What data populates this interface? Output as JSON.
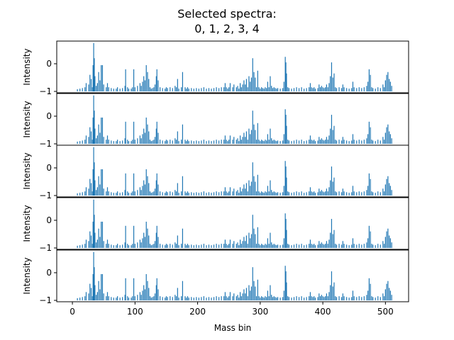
{
  "figure": {
    "title_line1": "Selected spectra:",
    "title_line2": "0, 1, 2, 3, 4"
  },
  "chart_data": {
    "type": "bar",
    "layout": "5 vertically stacked panels with shared x axis",
    "color": "#1f77b4",
    "xlabel": "Mass bin",
    "ylabel": "Intensity",
    "xlim": [
      -25,
      537
    ],
    "ylim": [
      -1.05,
      0.82
    ],
    "x_ticks": [
      0,
      100,
      200,
      300,
      400,
      500
    ],
    "y_ticks": [
      -1,
      0
    ],
    "baseline": -1,
    "panel_names": [
      "0",
      "1",
      "2",
      "3",
      "4"
    ],
    "peaks": [
      {
        "x": 8,
        "y": -0.92
      },
      {
        "x": 12,
        "y": -0.9
      },
      {
        "x": 16,
        "y": -0.88
      },
      {
        "x": 20,
        "y": -0.85
      },
      {
        "x": 22,
        "y": -0.7
      },
      {
        "x": 26,
        "y": -0.75
      },
      {
        "x": 28,
        "y": -0.4
      },
      {
        "x": 30,
        "y": -0.55
      },
      {
        "x": 32,
        "y": -0.85
      },
      {
        "x": 33,
        "y": -0.05
      },
      {
        "x": 34,
        "y": 0.75
      },
      {
        "x": 35,
        "y": 0.2
      },
      {
        "x": 36,
        "y": -0.45
      },
      {
        "x": 38,
        "y": -0.8
      },
      {
        "x": 40,
        "y": -0.7
      },
      {
        "x": 42,
        "y": -0.3
      },
      {
        "x": 44,
        "y": -0.6
      },
      {
        "x": 46,
        "y": -0.05
      },
      {
        "x": 48,
        "y": -0.05
      },
      {
        "x": 50,
        "y": -0.75
      },
      {
        "x": 54,
        "y": -0.85
      },
      {
        "x": 56,
        "y": -0.7
      },
      {
        "x": 58,
        "y": -0.85
      },
      {
        "x": 62,
        "y": -0.88
      },
      {
        "x": 66,
        "y": -0.9
      },
      {
        "x": 70,
        "y": -0.9
      },
      {
        "x": 72,
        "y": -0.85
      },
      {
        "x": 76,
        "y": -0.9
      },
      {
        "x": 80,
        "y": -0.88
      },
      {
        "x": 84,
        "y": -0.8
      },
      {
        "x": 85,
        "y": -0.2
      },
      {
        "x": 88,
        "y": -0.85
      },
      {
        "x": 90,
        "y": -0.9
      },
      {
        "x": 94,
        "y": -0.9
      },
      {
        "x": 96,
        "y": -0.85
      },
      {
        "x": 98,
        "y": -0.2
      },
      {
        "x": 100,
        "y": -0.85
      },
      {
        "x": 104,
        "y": -0.8
      },
      {
        "x": 108,
        "y": -0.7
      },
      {
        "x": 110,
        "y": -0.8
      },
      {
        "x": 112,
        "y": -0.65
      },
      {
        "x": 114,
        "y": -0.45
      },
      {
        "x": 116,
        "y": -0.6
      },
      {
        "x": 118,
        "y": -0.05
      },
      {
        "x": 120,
        "y": -0.3
      },
      {
        "x": 122,
        "y": -0.55
      },
      {
        "x": 124,
        "y": -0.85
      },
      {
        "x": 126,
        "y": -0.9
      },
      {
        "x": 128,
        "y": -0.88
      },
      {
        "x": 130,
        "y": -0.85
      },
      {
        "x": 132,
        "y": -0.75
      },
      {
        "x": 134,
        "y": -0.45
      },
      {
        "x": 135,
        "y": -0.2
      },
      {
        "x": 137,
        "y": -0.6
      },
      {
        "x": 140,
        "y": -0.85
      },
      {
        "x": 144,
        "y": -0.88
      },
      {
        "x": 148,
        "y": -0.9
      },
      {
        "x": 150,
        "y": -0.85
      },
      {
        "x": 152,
        "y": -0.88
      },
      {
        "x": 156,
        "y": -0.85
      },
      {
        "x": 160,
        "y": -0.88
      },
      {
        "x": 164,
        "y": -0.8
      },
      {
        "x": 166,
        "y": -0.85
      },
      {
        "x": 168,
        "y": -0.55
      },
      {
        "x": 170,
        "y": -0.9
      },
      {
        "x": 174,
        "y": -0.85
      },
      {
        "x": 176,
        "y": -0.3
      },
      {
        "x": 180,
        "y": -0.85
      },
      {
        "x": 182,
        "y": -0.9
      },
      {
        "x": 184,
        "y": -0.85
      },
      {
        "x": 186,
        "y": -0.9
      },
      {
        "x": 190,
        "y": -0.88
      },
      {
        "x": 194,
        "y": -0.9
      },
      {
        "x": 198,
        "y": -0.88
      },
      {
        "x": 202,
        "y": -0.9
      },
      {
        "x": 206,
        "y": -0.88
      },
      {
        "x": 210,
        "y": -0.85
      },
      {
        "x": 214,
        "y": -0.9
      },
      {
        "x": 218,
        "y": -0.88
      },
      {
        "x": 222,
        "y": -0.9
      },
      {
        "x": 226,
        "y": -0.88
      },
      {
        "x": 230,
        "y": -0.85
      },
      {
        "x": 234,
        "y": -0.88
      },
      {
        "x": 238,
        "y": -0.85
      },
      {
        "x": 242,
        "y": -0.85
      },
      {
        "x": 244,
        "y": -0.7
      },
      {
        "x": 246,
        "y": -0.85
      },
      {
        "x": 248,
        "y": -0.9
      },
      {
        "x": 250,
        "y": -0.85
      },
      {
        "x": 252,
        "y": -0.7
      },
      {
        "x": 256,
        "y": -0.85
      },
      {
        "x": 258,
        "y": -0.75
      },
      {
        "x": 262,
        "y": -0.85
      },
      {
        "x": 264,
        "y": -0.8
      },
      {
        "x": 266,
        "y": -0.9
      },
      {
        "x": 268,
        "y": -0.7
      },
      {
        "x": 270,
        "y": -0.85
      },
      {
        "x": 272,
        "y": -0.75
      },
      {
        "x": 274,
        "y": -0.6
      },
      {
        "x": 276,
        "y": -0.75
      },
      {
        "x": 278,
        "y": -0.55
      },
      {
        "x": 280,
        "y": -0.85
      },
      {
        "x": 282,
        "y": -0.45
      },
      {
        "x": 284,
        "y": -0.65
      },
      {
        "x": 286,
        "y": -0.5
      },
      {
        "x": 288,
        "y": 0.2
      },
      {
        "x": 290,
        "y": -0.3
      },
      {
        "x": 292,
        "y": -0.5
      },
      {
        "x": 294,
        "y": -0.85
      },
      {
        "x": 296,
        "y": -0.25
      },
      {
        "x": 298,
        "y": -0.85
      },
      {
        "x": 300,
        "y": -0.9
      },
      {
        "x": 302,
        "y": -0.85
      },
      {
        "x": 304,
        "y": -0.88
      },
      {
        "x": 306,
        "y": -0.9
      },
      {
        "x": 308,
        "y": -0.85
      },
      {
        "x": 310,
        "y": -0.88
      },
      {
        "x": 312,
        "y": -0.65
      },
      {
        "x": 314,
        "y": -0.85
      },
      {
        "x": 316,
        "y": -0.45
      },
      {
        "x": 318,
        "y": -0.8
      },
      {
        "x": 320,
        "y": -0.88
      },
      {
        "x": 322,
        "y": -0.85
      },
      {
        "x": 324,
        "y": -0.88
      },
      {
        "x": 326,
        "y": -0.9
      },
      {
        "x": 328,
        "y": -0.88
      },
      {
        "x": 332,
        "y": -0.9
      },
      {
        "x": 336,
        "y": -0.88
      },
      {
        "x": 338,
        "y": -0.65
      },
      {
        "x": 340,
        "y": 0.25
      },
      {
        "x": 341,
        "y": 0.05
      },
      {
        "x": 342,
        "y": -0.35
      },
      {
        "x": 344,
        "y": -0.85
      },
      {
        "x": 346,
        "y": -0.88
      },
      {
        "x": 350,
        "y": -0.9
      },
      {
        "x": 354,
        "y": -0.88
      },
      {
        "x": 358,
        "y": -0.85
      },
      {
        "x": 362,
        "y": -0.88
      },
      {
        "x": 366,
        "y": -0.85
      },
      {
        "x": 370,
        "y": -0.9
      },
      {
        "x": 374,
        "y": -0.88
      },
      {
        "x": 378,
        "y": -0.85
      },
      {
        "x": 380,
        "y": -0.7
      },
      {
        "x": 382,
        "y": -0.85
      },
      {
        "x": 384,
        "y": -0.88
      },
      {
        "x": 386,
        "y": -0.85
      },
      {
        "x": 388,
        "y": -0.9
      },
      {
        "x": 392,
        "y": -0.88
      },
      {
        "x": 394,
        "y": -0.75
      },
      {
        "x": 396,
        "y": -0.85
      },
      {
        "x": 398,
        "y": -0.8
      },
      {
        "x": 400,
        "y": -0.85
      },
      {
        "x": 402,
        "y": -0.88
      },
      {
        "x": 404,
        "y": -0.85
      },
      {
        "x": 406,
        "y": -0.75
      },
      {
        "x": 408,
        "y": -0.85
      },
      {
        "x": 410,
        "y": -0.7
      },
      {
        "x": 412,
        "y": -0.45
      },
      {
        "x": 414,
        "y": 0.05
      },
      {
        "x": 416,
        "y": -0.5
      },
      {
        "x": 418,
        "y": -0.35
      },
      {
        "x": 420,
        "y": -0.85
      },
      {
        "x": 422,
        "y": -0.88
      },
      {
        "x": 426,
        "y": -0.85
      },
      {
        "x": 430,
        "y": -0.88
      },
      {
        "x": 432,
        "y": -0.75
      },
      {
        "x": 434,
        "y": -0.85
      },
      {
        "x": 438,
        "y": -0.88
      },
      {
        "x": 442,
        "y": -0.9
      },
      {
        "x": 446,
        "y": -0.88
      },
      {
        "x": 448,
        "y": -0.65
      },
      {
        "x": 450,
        "y": -0.85
      },
      {
        "x": 454,
        "y": -0.88
      },
      {
        "x": 458,
        "y": -0.85
      },
      {
        "x": 462,
        "y": -0.88
      },
      {
        "x": 466,
        "y": -0.85
      },
      {
        "x": 470,
        "y": -0.8
      },
      {
        "x": 472,
        "y": -0.65
      },
      {
        "x": 474,
        "y": -0.2
      },
      {
        "x": 476,
        "y": -0.4
      },
      {
        "x": 478,
        "y": -0.85
      },
      {
        "x": 480,
        "y": -0.88
      },
      {
        "x": 484,
        "y": -0.9
      },
      {
        "x": 488,
        "y": -0.85
      },
      {
        "x": 492,
        "y": -0.88
      },
      {
        "x": 496,
        "y": -0.75
      },
      {
        "x": 498,
        "y": -0.85
      },
      {
        "x": 500,
        "y": -0.6
      },
      {
        "x": 502,
        "y": -0.4
      },
      {
        "x": 504,
        "y": -0.3
      },
      {
        "x": 506,
        "y": -0.55
      },
      {
        "x": 508,
        "y": -0.65
      },
      {
        "x": 510,
        "y": -0.8
      }
    ]
  }
}
